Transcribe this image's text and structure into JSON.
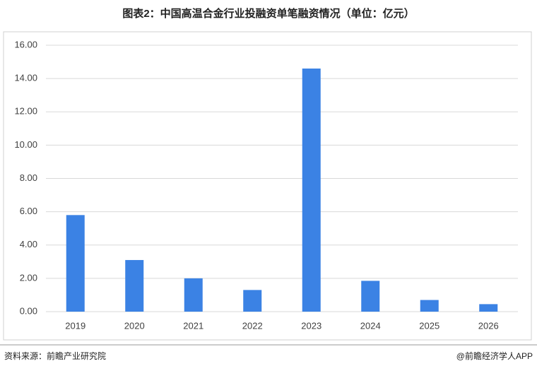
{
  "chart_data": {
    "type": "bar",
    "title": "图表2：中国高温合金行业投融资单笔融资情况（单位：亿元）",
    "categories": [
      "2019",
      "2020",
      "2021",
      "2022",
      "2023",
      "2024",
      "2025",
      "2026"
    ],
    "values": [
      5.8,
      3.1,
      2.0,
      1.3,
      14.6,
      1.85,
      0.7,
      0.45
    ],
    "color": "#3b82e4",
    "ylim": [
      0,
      16
    ],
    "yticks": [
      {
        "value": 0,
        "label": "0.00"
      },
      {
        "value": 2,
        "label": "2.00"
      },
      {
        "value": 4,
        "label": "4.00"
      },
      {
        "value": 6,
        "label": "6.00"
      },
      {
        "value": 8,
        "label": "8.00"
      },
      {
        "value": 10,
        "label": "10.00"
      },
      {
        "value": 12,
        "label": "12.00"
      },
      {
        "value": 14,
        "label": "14.00"
      },
      {
        "value": 16,
        "label": "16.00"
      }
    ],
    "grid": true,
    "source": "资料来源：前瞻产业研究院",
    "credit": "@前瞻经济学人APP"
  }
}
